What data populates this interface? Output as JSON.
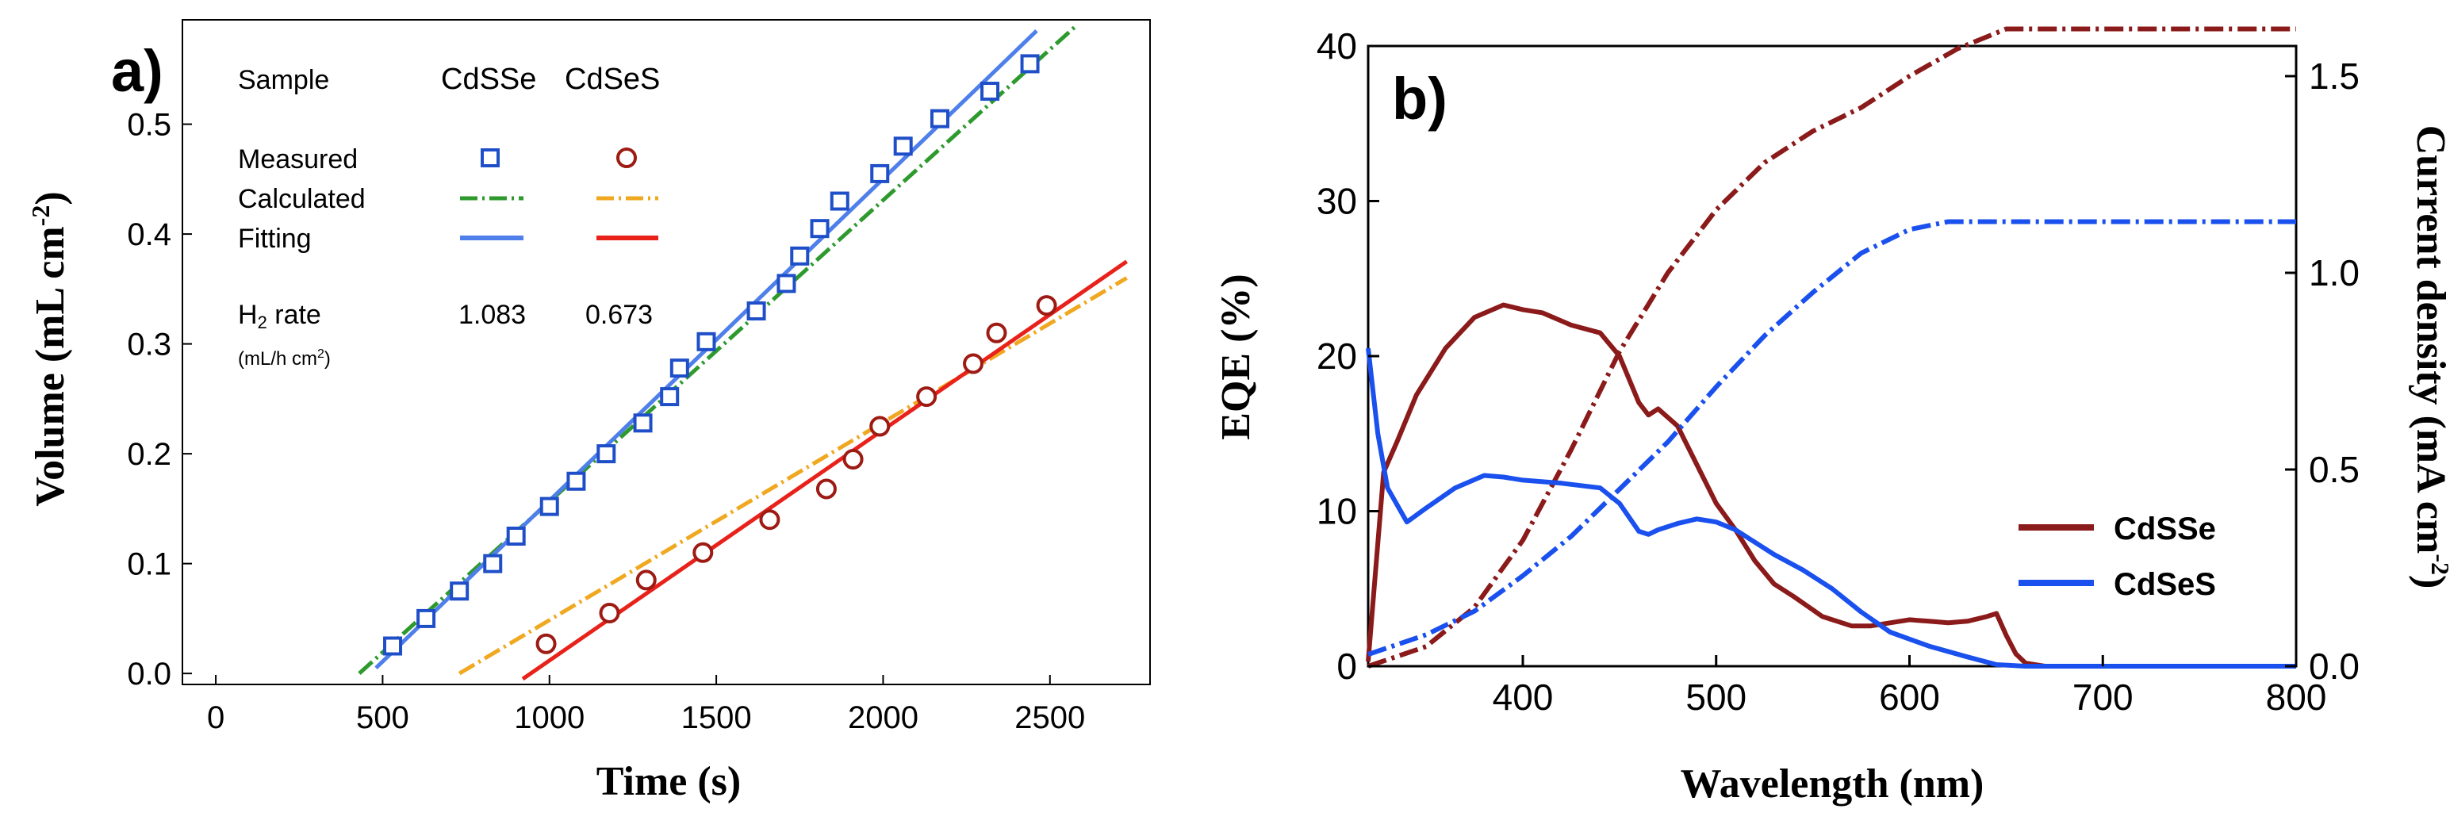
{
  "chart_data": [
    {
      "panel_label": "a)",
      "type": "scatter",
      "xlabel": "Time (s)",
      "ylabel": "Volume (mL cm",
      "ylabel_sup": "-2",
      "ylabel_close": ")",
      "xlim": [
        -100,
        2800
      ],
      "ylim": [
        -0.01,
        0.595
      ],
      "x_ticks": [
        0,
        500,
        1000,
        1500,
        2000,
        2500
      ],
      "y_ticks": [
        0.0,
        0.1,
        0.2,
        0.3,
        0.4,
        0.5
      ],
      "y_tick_labels": [
        "0.0",
        "0.1",
        "0.2",
        "0.3",
        "0.4",
        "0.5"
      ],
      "legend_table": {
        "sample_label": "Sample",
        "columns": [
          "CdSSe",
          "CdSeS"
        ],
        "rows": [
          "Measured",
          "Calculated",
          "Fitting"
        ],
        "rate_label_main": "H",
        "rate_label_sub": "2",
        "rate_label_rest": " rate",
        "rate_unit_main": "(mL/h cm",
        "rate_unit_sup": "2",
        "rate_unit_close": ")",
        "rate_values": [
          "1.083",
          "0.673"
        ]
      },
      "series": [
        {
          "name": "CdSSe",
          "color": "#1f4fc8",
          "measured": {
            "marker": "square",
            "x": [
              530,
              630,
              730,
              830,
              900,
              1000,
              1080,
              1170,
              1280,
              1360,
              1390,
              1470,
              1620,
              1710,
              1750,
              1810,
              1870,
              1990,
              2060,
              2170,
              2320,
              2440
            ],
            "y": [
              0.025,
              0.05,
              0.075,
              0.1,
              0.125,
              0.152,
              0.175,
              0.2,
              0.228,
              0.252,
              0.278,
              0.302,
              0.33,
              0.355,
              0.38,
              0.405,
              0.43,
              0.455,
              0.48,
              0.505,
              0.53,
              0.555
            ]
          },
          "calculated": {
            "color": "#2e9a2e",
            "x": [
              430,
              2580
            ],
            "y": [
              0.0,
              0.59
            ]
          },
          "fitting": {
            "color": "#4e7fea",
            "x": [
              480,
              2460
            ],
            "y": [
              0.005,
              0.585
            ]
          }
        },
        {
          "name": "CdSeS",
          "color": "#9e1b14",
          "measured": {
            "marker": "circle",
            "x": [
              990,
              1180,
              1290,
              1460,
              1660,
              1830,
              1910,
              1990,
              2130,
              2270,
              2340,
              2490
            ],
            "y": [
              0.027,
              0.055,
              0.085,
              0.11,
              0.14,
              0.168,
              0.195,
              0.225,
              0.252,
              0.282,
              0.31,
              0.335
            ]
          },
          "calculated": {
            "color": "#f0a820",
            "x": [
              730,
              2730
            ],
            "y": [
              0.0,
              0.36
            ]
          },
          "fitting": {
            "color": "#e8221a",
            "x": [
              920,
              2730
            ],
            "y": [
              -0.005,
              0.375
            ]
          }
        }
      ]
    },
    {
      "panel_label": "b)",
      "type": "line",
      "xlabel": "Wavelength (nm)",
      "ylabel": "EQE (%)",
      "y2label": "Current density (mA cm",
      "y2label_sup": "-2",
      "y2label_close": ")",
      "xlim": [
        320,
        800
      ],
      "ylim": [
        0,
        40
      ],
      "y2lim": [
        0,
        1.6
      ],
      "x_ticks": [
        400,
        500,
        600,
        700,
        800
      ],
      "y_ticks": [
        0,
        10,
        20,
        30,
        40
      ],
      "y2_ticks": [
        0.0,
        0.5,
        1.0,
        1.5
      ],
      "y2_tick_labels": [
        "0.0",
        "0.5",
        "1.0",
        "1.5"
      ],
      "legend_position": "lower-right",
      "series": [
        {
          "name": "CdSSe",
          "color": "#8b1a1a",
          "eqe": {
            "x": [
              320,
              328,
              335,
              345,
              360,
              375,
              390,
              400,
              410,
              425,
              440,
              450,
              460,
              465,
              470,
              480,
              490,
              500,
              510,
              520,
              530,
              540,
              555,
              570,
              580,
              590,
              600,
              610,
              620,
              630,
              640,
              645,
              650,
              655,
              660,
              670,
              700,
              750,
              800
            ],
            "y": [
              0.3,
              12.5,
              14.5,
              17.5,
              20.5,
              22.5,
              23.3,
              23.0,
              22.8,
              22.0,
              21.5,
              20.0,
              17.0,
              16.2,
              16.6,
              15.5,
              13.0,
              10.5,
              8.8,
              6.8,
              5.3,
              4.5,
              3.2,
              2.6,
              2.6,
              2.8,
              3.0,
              2.9,
              2.8,
              2.9,
              3.2,
              3.4,
              2.0,
              0.8,
              0.2,
              0.0,
              0.0,
              0.0,
              0.0
            ]
          },
          "current_density": {
            "x": [
              320,
              350,
              375,
              400,
              425,
              450,
              475,
              500,
              525,
              550,
              575,
              600,
              625,
              650,
              680,
              700,
              750,
              800
            ],
            "y": [
              0.0,
              0.05,
              0.15,
              0.32,
              0.55,
              0.8,
              1.0,
              1.16,
              1.28,
              1.36,
              1.42,
              1.5,
              1.57,
              1.62,
              1.62,
              1.62,
              1.62,
              1.62
            ]
          }
        },
        {
          "name": "CdSeS",
          "color": "#1a50ee",
          "eqe": {
            "x": [
              320,
              325,
              330,
              340,
              350,
              365,
              380,
              390,
              400,
              420,
              440,
              450,
              460,
              465,
              470,
              480,
              490,
              500,
              510,
              520,
              530,
              545,
              560,
              575,
              590,
              610,
              630,
              645,
              660,
              680,
              700,
              750,
              800
            ],
            "y": [
              20.5,
              15.0,
              11.5,
              9.3,
              10.2,
              11.5,
              12.3,
              12.2,
              12.0,
              11.8,
              11.5,
              10.5,
              8.7,
              8.5,
              8.8,
              9.2,
              9.5,
              9.3,
              8.8,
              8.0,
              7.2,
              6.2,
              5.0,
              3.5,
              2.2,
              1.3,
              0.6,
              0.1,
              0.0,
              0.0,
              0.0,
              0.0,
              0.0
            ]
          },
          "current_density": {
            "x": [
              320,
              350,
              375,
              400,
              425,
              450,
              475,
              500,
              525,
              550,
              575,
              600,
              620,
              650,
              700,
              750,
              800
            ],
            "y": [
              0.03,
              0.08,
              0.14,
              0.23,
              0.33,
              0.45,
              0.57,
              0.71,
              0.84,
              0.95,
              1.05,
              1.11,
              1.13,
              1.13,
              1.13,
              1.13,
              1.13
            ]
          }
        }
      ]
    }
  ]
}
